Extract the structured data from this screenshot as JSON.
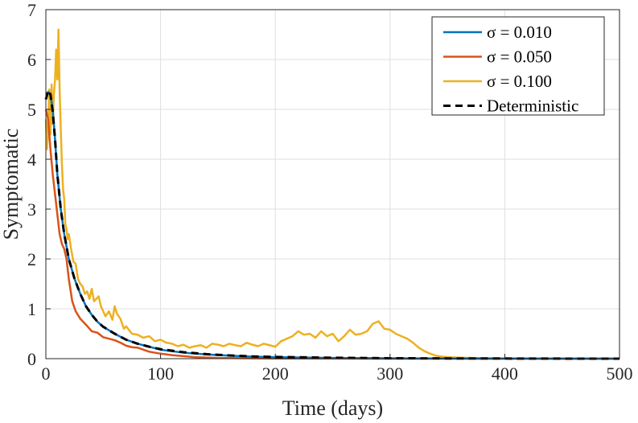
{
  "chart_data": {
    "type": "line",
    "xlabel": "Time (days)",
    "ylabel": "Symptomatic",
    "xlim": [
      0,
      500
    ],
    "ylim": [
      0,
      7
    ],
    "xticks": [
      0,
      100,
      200,
      300,
      400,
      500
    ],
    "yticks": [
      0,
      1,
      2,
      3,
      4,
      5,
      6,
      7
    ],
    "grid": true,
    "legend_position": "top-right",
    "series": [
      {
        "name": "σ = 0.010",
        "color": "#0072BD",
        "style": "solid",
        "x": [
          0,
          2,
          4,
          6,
          8,
          10,
          13,
          16,
          20,
          25,
          30,
          35,
          40,
          45,
          50,
          60,
          70,
          80,
          90,
          100,
          120,
          140,
          160,
          180,
          200,
          250,
          300,
          350,
          400,
          450,
          500
        ],
        "y": [
          5.2,
          5.35,
          5.3,
          5.0,
          4.4,
          3.7,
          3.0,
          2.5,
          2.0,
          1.6,
          1.3,
          1.05,
          0.88,
          0.74,
          0.64,
          0.5,
          0.38,
          0.3,
          0.24,
          0.18,
          0.12,
          0.085,
          0.06,
          0.04,
          0.03,
          0.015,
          0.008,
          0.004,
          0.002,
          0.001,
          0.0005
        ]
      },
      {
        "name": "σ = 0.050",
        "color": "#D95319",
        "style": "solid",
        "x": [
          0,
          2,
          4,
          6,
          8,
          10,
          12,
          14,
          16,
          18,
          20,
          23,
          26,
          30,
          35,
          40,
          45,
          50,
          55,
          60,
          65,
          70,
          75,
          80,
          90,
          100,
          110,
          120,
          130,
          150,
          200,
          250,
          300,
          400,
          500
        ],
        "y": [
          5.0,
          4.8,
          4.2,
          3.7,
          3.3,
          2.9,
          2.5,
          2.3,
          2.2,
          2.0,
          1.6,
          1.15,
          0.95,
          0.8,
          0.68,
          0.55,
          0.52,
          0.43,
          0.4,
          0.37,
          0.32,
          0.26,
          0.23,
          0.22,
          0.14,
          0.1,
          0.07,
          0.05,
          0.03,
          0.015,
          0.005,
          0.002,
          0.001,
          0.0005,
          0.0002
        ]
      },
      {
        "name": "σ = 0.100",
        "color": "#EDB120",
        "style": "solid",
        "x": [
          0,
          1,
          2,
          3,
          4,
          5,
          6,
          7,
          8,
          9,
          10,
          11,
          12,
          13,
          14,
          15,
          16,
          17,
          18,
          19,
          20,
          22,
          24,
          26,
          28,
          30,
          32,
          34,
          36,
          38,
          40,
          42,
          44,
          46,
          48,
          50,
          52,
          55,
          58,
          60,
          62,
          65,
          68,
          70,
          75,
          80,
          85,
          90,
          95,
          100,
          105,
          110,
          115,
          120,
          125,
          130,
          135,
          140,
          145,
          150,
          155,
          160,
          165,
          170,
          175,
          180,
          185,
          190,
          195,
          200,
          205,
          210,
          215,
          220,
          225,
          230,
          235,
          240,
          245,
          250,
          255,
          260,
          265,
          270,
          275,
          280,
          285,
          290,
          295,
          300,
          305,
          310,
          315,
          320,
          325,
          330,
          335,
          340,
          345,
          350,
          360,
          380,
          400,
          450,
          500
        ],
        "y": [
          4.8,
          4.2,
          4.7,
          5.4,
          4.5,
          5.5,
          4.7,
          5.3,
          5.6,
          6.2,
          5.6,
          6.6,
          5.4,
          4.6,
          3.9,
          3.4,
          3.2,
          2.7,
          2.6,
          2.4,
          2.5,
          2.2,
          1.95,
          1.9,
          1.6,
          1.5,
          1.45,
          1.3,
          1.35,
          1.2,
          1.4,
          1.15,
          1.2,
          1.25,
          1.05,
          0.95,
          0.85,
          0.95,
          0.78,
          1.05,
          0.9,
          0.8,
          0.6,
          0.65,
          0.5,
          0.48,
          0.42,
          0.45,
          0.35,
          0.38,
          0.32,
          0.3,
          0.25,
          0.28,
          0.22,
          0.25,
          0.27,
          0.22,
          0.3,
          0.28,
          0.25,
          0.3,
          0.27,
          0.25,
          0.32,
          0.28,
          0.25,
          0.3,
          0.27,
          0.24,
          0.35,
          0.4,
          0.45,
          0.55,
          0.48,
          0.5,
          0.42,
          0.55,
          0.45,
          0.5,
          0.35,
          0.45,
          0.58,
          0.48,
          0.5,
          0.55,
          0.7,
          0.75,
          0.6,
          0.58,
          0.5,
          0.45,
          0.4,
          0.32,
          0.22,
          0.15,
          0.1,
          0.06,
          0.04,
          0.03,
          0.02,
          0.01,
          0.005,
          0.002,
          0.001
        ]
      },
      {
        "name": "Deterministic",
        "color": "#000000",
        "style": "dashed",
        "x": [
          0,
          2,
          4,
          6,
          8,
          10,
          13,
          16,
          20,
          25,
          30,
          35,
          40,
          45,
          50,
          60,
          70,
          80,
          90,
          100,
          120,
          140,
          160,
          180,
          200,
          250,
          300,
          350,
          400,
          450,
          500
        ],
        "y": [
          5.2,
          5.38,
          5.3,
          4.95,
          4.4,
          3.7,
          3.0,
          2.5,
          2.0,
          1.6,
          1.3,
          1.05,
          0.88,
          0.74,
          0.64,
          0.5,
          0.38,
          0.3,
          0.24,
          0.19,
          0.13,
          0.09,
          0.065,
          0.045,
          0.035,
          0.018,
          0.009,
          0.005,
          0.003,
          0.001,
          0.0005
        ]
      }
    ]
  }
}
